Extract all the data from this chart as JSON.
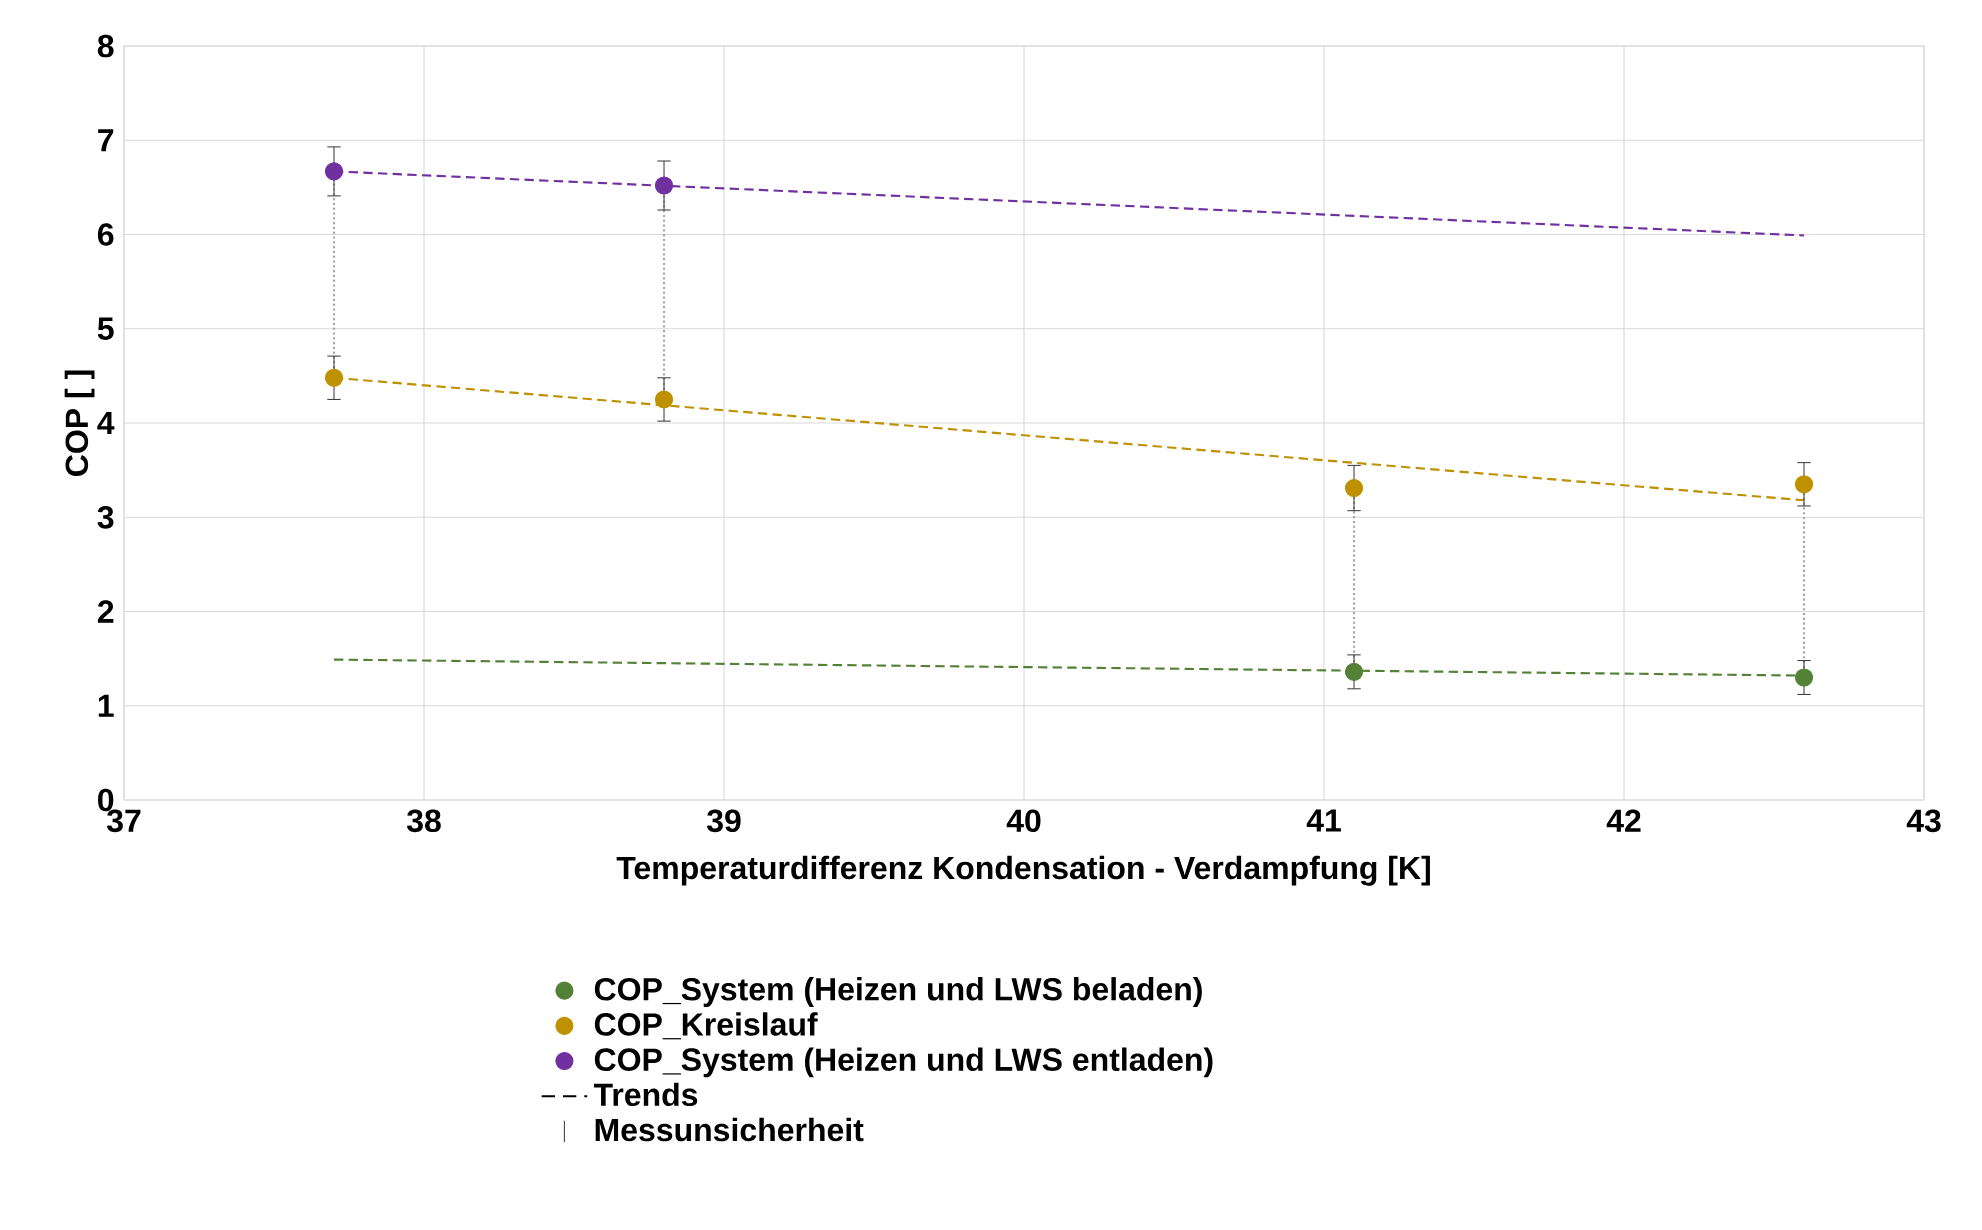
{
  "chart_data": {
    "type": "scatter",
    "xlabel": "Temperaturdifferenz Kondensation - Verdampfung [K]",
    "ylabel": "COP [ ]",
    "xlim": [
      37,
      43
    ],
    "xticks": [
      37,
      38,
      39,
      40,
      41,
      42,
      43
    ],
    "ylim": [
      0,
      8
    ],
    "yticks": [
      0,
      1,
      2,
      3,
      4,
      5,
      6,
      7,
      8
    ],
    "grid": true,
    "legend": "bottom",
    "annotations": [
      "Trends",
      "Messunsicherheit"
    ],
    "series": [
      {
        "name": "COP_System (Heizen und LWS beladen)",
        "color": "#538135",
        "marker": "circle",
        "x": [
          41.1,
          42.6
        ],
        "values": [
          1.36,
          1.3
        ],
        "errors": [
          0.18,
          0.18
        ]
      },
      {
        "name": "COP_Kreislauf",
        "color": "#bf9000",
        "marker": "circle",
        "x": [
          37.7,
          38.8,
          41.1,
          42.6
        ],
        "values": [
          4.48,
          4.25,
          3.31,
          3.35
        ],
        "errors": [
          0.23,
          0.23,
          0.24,
          0.23
        ]
      },
      {
        "name": "COP_System (Heizen und LWS entladen)",
        "color": "#7030a0",
        "marker": "circle",
        "x": [
          37.7,
          38.8
        ],
        "values": [
          6.67,
          6.52
        ],
        "errors": [
          0.26,
          0.26
        ]
      },
      {
        "type": "line",
        "color": "#538135",
        "line_style": "dashed",
        "marker": "none",
        "x": [
          37.7,
          42.6
        ],
        "values": [
          1.49,
          1.32
        ]
      },
      {
        "type": "line",
        "color": "#bf9000",
        "line_style": "dashed",
        "marker": "none",
        "x": [
          37.7,
          42.6
        ],
        "values": [
          4.48,
          3.18
        ]
      },
      {
        "type": "line",
        "color": "#7030a0",
        "line_style": "dashed",
        "marker": "none",
        "x": [
          37.7,
          42.6
        ],
        "values": [
          6.67,
          5.99
        ]
      },
      {
        "type": "line",
        "color": "#a6a6a6",
        "line_style": "dotted",
        "marker": "none",
        "x": [
          37.7,
          37.7
        ],
        "values": [
          4.48,
          6.67
        ]
      },
      {
        "type": "line",
        "color": "#a6a6a6",
        "line_style": "dotted",
        "marker": "none",
        "x": [
          38.8,
          38.8
        ],
        "values": [
          4.25,
          6.52
        ]
      },
      {
        "type": "line",
        "color": "#a6a6a6",
        "line_style": "dotted",
        "marker": "none",
        "x": [
          41.1,
          41.1
        ],
        "values": [
          1.36,
          3.31
        ]
      },
      {
        "type": "line",
        "color": "#a6a6a6",
        "line_style": "dotted",
        "marker": "none",
        "x": [
          42.6,
          42.6
        ],
        "values": [
          1.3,
          3.35
        ]
      }
    ]
  }
}
